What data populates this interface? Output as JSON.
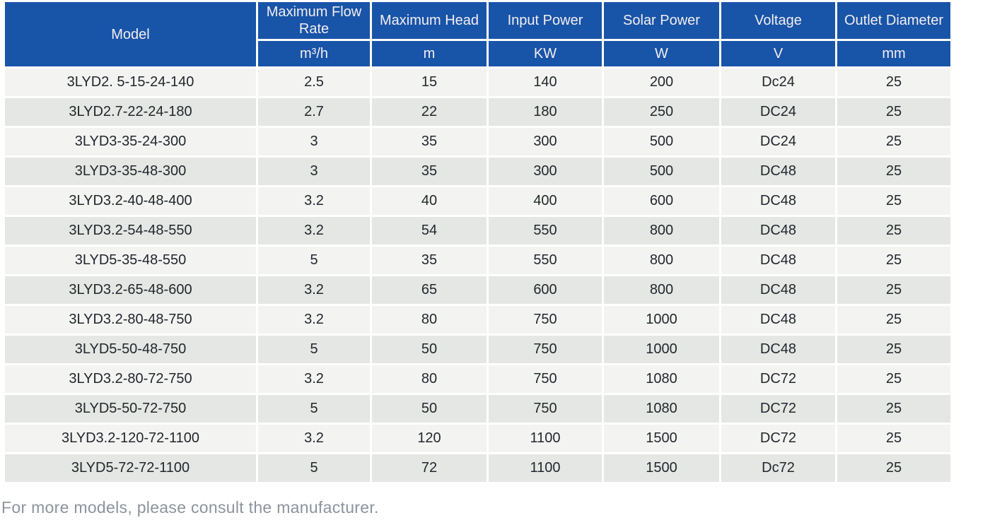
{
  "table": {
    "columns": [
      {
        "label": "Model",
        "unit": ""
      },
      {
        "label": "Maximum Flow Rate",
        "unit": "m³/h"
      },
      {
        "label": "Maximum Head",
        "unit": "m"
      },
      {
        "label": "Input Power",
        "unit": "KW"
      },
      {
        "label": "Solar Power",
        "unit": "W"
      },
      {
        "label": "Voltage",
        "unit": "V"
      },
      {
        "label": "Outlet Diameter",
        "unit": "mm"
      }
    ],
    "rows": [
      [
        "3LYD2. 5-15-24-140",
        "2.5",
        "15",
        "140",
        "200",
        "Dc24",
        "25"
      ],
      [
        "3LYD2.7-22-24-180",
        "2.7",
        "22",
        "180",
        "250",
        "DC24",
        "25"
      ],
      [
        "3LYD3-35-24-300",
        "3",
        "35",
        "300",
        "500",
        "DC24",
        "25"
      ],
      [
        "3LYD3-35-48-300",
        "3",
        "35",
        "300",
        "500",
        "DC48",
        "25"
      ],
      [
        "3LYD3.2-40-48-400",
        "3.2",
        "40",
        "400",
        "600",
        "DC48",
        "25"
      ],
      [
        "3LYD3.2-54-48-550",
        "3.2",
        "54",
        "550",
        "800",
        "DC48",
        "25"
      ],
      [
        "3LYD5-35-48-550",
        "5",
        "35",
        "550",
        "800",
        "DC48",
        "25"
      ],
      [
        "3LYD3.2-65-48-600",
        "3.2",
        "65",
        "600",
        "800",
        "DC48",
        "25"
      ],
      [
        "3LYD3.2-80-48-750",
        "3.2",
        "80",
        "750",
        "1000",
        "DC48",
        "25"
      ],
      [
        "3LYD5-50-48-750",
        "5",
        "50",
        "750",
        "1000",
        "DC48",
        "25"
      ],
      [
        "3LYD3.2-80-72-750",
        "3.2",
        "80",
        "750",
        "1080",
        "DC72",
        "25"
      ],
      [
        "3LYD5-50-72-750",
        "5",
        "50",
        "750",
        "1080",
        "DC72",
        "25"
      ],
      [
        "3LYD3.2-120-72-1100",
        "3.2",
        "120",
        "1100",
        "1500",
        "DC72",
        "25"
      ],
      [
        "3LYD5-72-72-1100",
        "5",
        "72",
        "1100",
        "1500",
        "Dc72",
        "25"
      ]
    ]
  },
  "footer": {
    "note": "For more models, please consult the manufacturer."
  },
  "colors": {
    "header_bg": "#1854a8",
    "header_text": "#f3eef0",
    "row_odd": "#f3f4f2",
    "row_even": "#e4e7e3",
    "cell_text": "#23272d",
    "footer_text": "#8d939c"
  }
}
